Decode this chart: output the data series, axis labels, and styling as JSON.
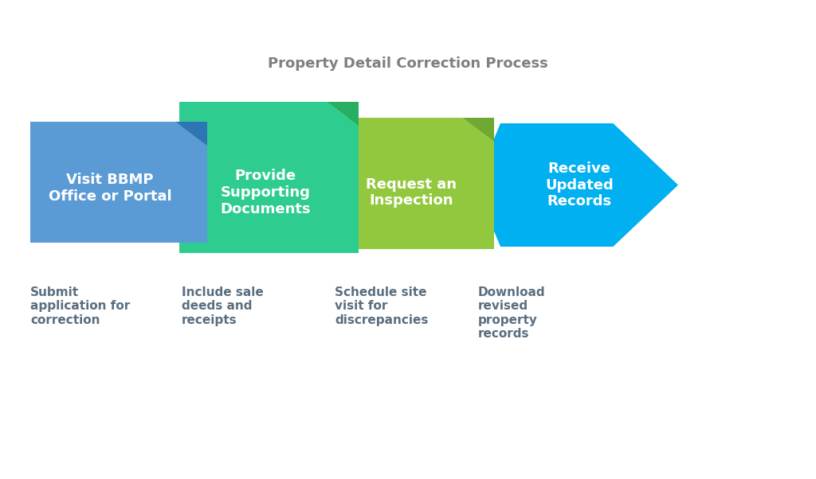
{
  "title": "Property Detail Correction Process",
  "title_color": "#7f7f7f",
  "title_fontsize": 13,
  "bg_color": "#ffffff",
  "steps": [
    {
      "label": "Visit BBMP\nOffice or Portal",
      "color": "#5b9bd5",
      "tab_color": "#2e75b6",
      "shape": "rect_tab",
      "sub_text": "Submit\napplication for\ncorrection",
      "sub_text_color": "#5a6e7f"
    },
    {
      "label": "Provide\nSupporting\nDocuments",
      "color": "#2ecc8f",
      "tab_color": "#27ae60",
      "shape": "rect_tab",
      "sub_text": "Include sale\ndeeds and\nreceipts",
      "sub_text_color": "#5a6e7f"
    },
    {
      "label": "Request an\nInspection",
      "color": "#92c83e",
      "tab_color": "#6fa832",
      "shape": "rect_tab",
      "sub_text": "Schedule site\nvisit for\ndiscrepancies",
      "sub_text_color": "#5a6e7f"
    },
    {
      "label": "Receive\nUpdated\nRecords",
      "color": "#00b0f0",
      "tab_color": "#0090c0",
      "shape": "arrow",
      "sub_text": "Download\nrevised\nproperty\nrecords",
      "sub_text_color": "#5a6e7f"
    }
  ],
  "label_text_color": "#ffffff",
  "label_fontsize": 13,
  "sub_text_fontsize": 11
}
